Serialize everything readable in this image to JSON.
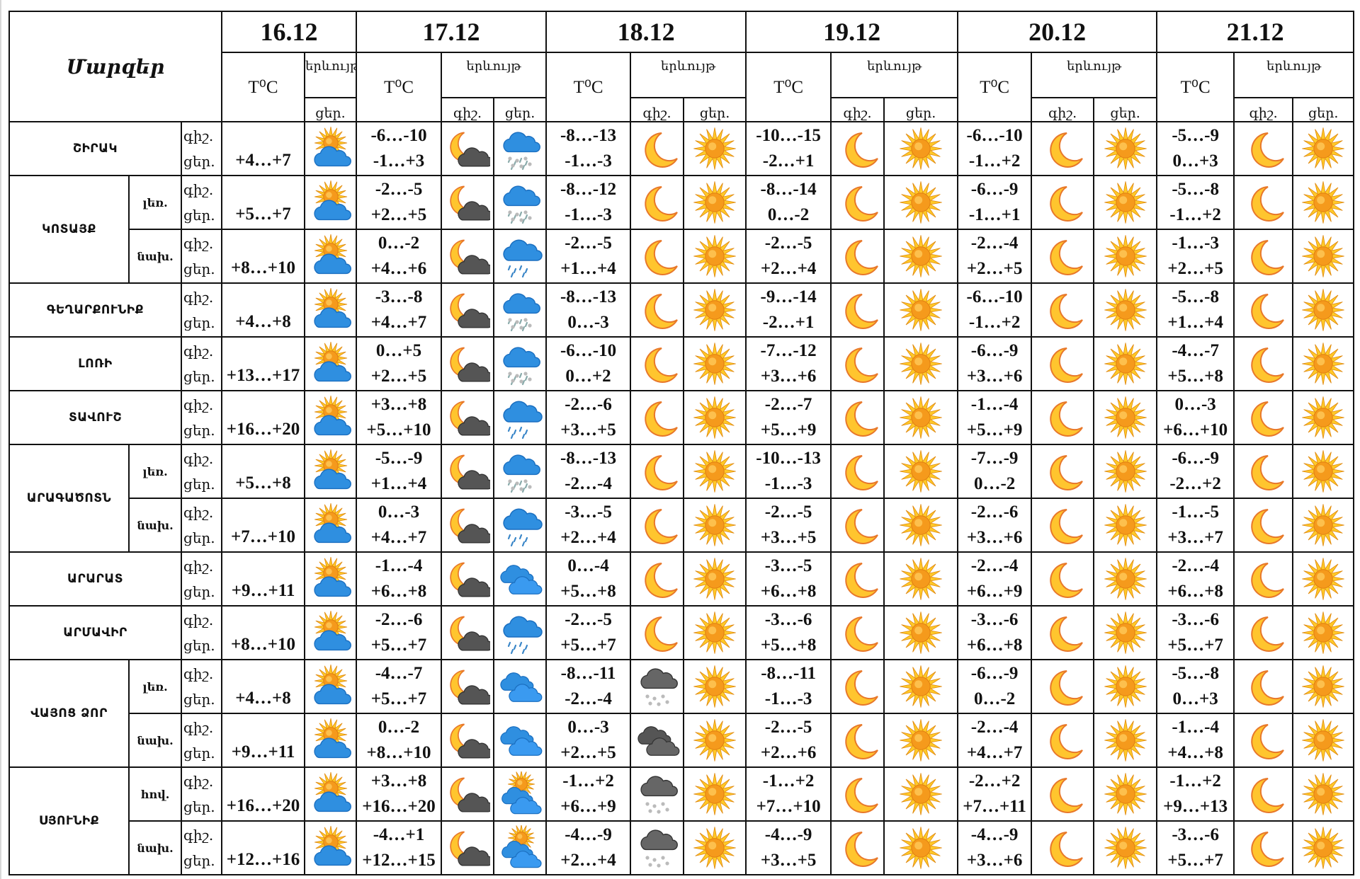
{
  "header": {
    "title": "Մարզեր",
    "dates": [
      "16.12",
      "17.12",
      "18.12",
      "19.12",
      "20.12",
      "21.12"
    ],
    "temp_label": "T⁰C",
    "phenomenon_label": "երևույթ",
    "night_label": "գիշ.",
    "day_label": "ցեր."
  },
  "rows": [
    {
      "region": "ՇԻՐԱԿ",
      "sub": "",
      "night": "գիշ.",
      "day": "ցեր.",
      "d16": {
        "temp": "+4…+7",
        "icon": "sun-cloud"
      },
      "days": [
        {
          "tn": "-6…-10",
          "td": "-1…+3",
          "in": "moon-cloud",
          "id": "sleet"
        },
        {
          "tn": "-8…-13",
          "td": "-1…-3",
          "in": "moon",
          "id": "sun"
        },
        {
          "tn": "-10…-15",
          "td": "-2…+1",
          "in": "moon",
          "id": "sun"
        },
        {
          "tn": "-6…-10",
          "td": "-1…+2",
          "in": "moon",
          "id": "sun"
        },
        {
          "tn": "-5…-9",
          "td": "0…+3",
          "in": "moon",
          "id": "sun"
        }
      ]
    },
    {
      "region": "ԿՈՏԱՅՔ",
      "sub": "լեռ.",
      "night": "գիշ.",
      "day": "ցեր.",
      "d16": {
        "temp": "+5…+7",
        "icon": "sun-cloud"
      },
      "days": [
        {
          "tn": "-2…-5",
          "td": "+2…+5",
          "in": "moon-cloud",
          "id": "sleet"
        },
        {
          "tn": "-8…-12",
          "td": "-1…-3",
          "in": "moon",
          "id": "sun"
        },
        {
          "tn": "-8…-14",
          "td": "0…-2",
          "in": "moon",
          "id": "sun"
        },
        {
          "tn": "-6…-9",
          "td": "-1…+1",
          "in": "moon",
          "id": "sun"
        },
        {
          "tn": "-5…-8",
          "td": "-1…+2",
          "in": "moon",
          "id": "sun"
        }
      ]
    },
    {
      "region": "",
      "sub": "նախ.",
      "night": "գիշ.",
      "day": "ցեր.",
      "d16": {
        "temp": "+8…+10",
        "icon": "sun-cloud"
      },
      "days": [
        {
          "tn": "0…-2",
          "td": "+4…+6",
          "in": "moon-cloud",
          "id": "rain"
        },
        {
          "tn": "-2…-5",
          "td": "+1…+4",
          "in": "moon",
          "id": "sun"
        },
        {
          "tn": "-2…-5",
          "td": "+2…+4",
          "in": "moon",
          "id": "sun"
        },
        {
          "tn": "-2…-4",
          "td": "+2…+5",
          "in": "moon",
          "id": "sun"
        },
        {
          "tn": "-1…-3",
          "td": "+2…+5",
          "in": "moon",
          "id": "sun"
        }
      ]
    },
    {
      "region": "ԳԵՂԱՐՔՈՒՆԻՔ",
      "sub": "",
      "night": "գիշ.",
      "day": "ցեր.",
      "d16": {
        "temp": "+4…+8",
        "icon": "sun-cloud"
      },
      "days": [
        {
          "tn": "-3…-8",
          "td": "+4…+7",
          "in": "moon-cloud",
          "id": "sleet"
        },
        {
          "tn": "-8…-13",
          "td": "0…-3",
          "in": "moon",
          "id": "sun"
        },
        {
          "tn": "-9…-14",
          "td": "-2…+1",
          "in": "moon",
          "id": "sun"
        },
        {
          "tn": "-6…-10",
          "td": "-1…+2",
          "in": "moon",
          "id": "sun"
        },
        {
          "tn": "-5…-8",
          "td": "+1…+4",
          "in": "moon",
          "id": "sun"
        }
      ]
    },
    {
      "region": "ԼՈՌԻ",
      "sub": "",
      "night": "գիշ.",
      "day": "ցեր.",
      "d16": {
        "temp": "+13…+17",
        "icon": "sun-cloud"
      },
      "days": [
        {
          "tn": "0…+5",
          "td": "+2…+5",
          "in": "moon-cloud",
          "id": "sleet"
        },
        {
          "tn": "-6…-10",
          "td": "0…+2",
          "in": "moon",
          "id": "sun"
        },
        {
          "tn": "-7…-12",
          "td": "+3…+6",
          "in": "moon",
          "id": "sun"
        },
        {
          "tn": "-6…-9",
          "td": "+3…+6",
          "in": "moon",
          "id": "sun"
        },
        {
          "tn": "-4…-7",
          "td": "+5…+8",
          "in": "moon",
          "id": "sun"
        }
      ]
    },
    {
      "region": "ՏԱՎՈՒՇ",
      "sub": "",
      "night": "գիշ.",
      "day": "ցեր.",
      "d16": {
        "temp": "+16…+20",
        "icon": "sun-cloud"
      },
      "days": [
        {
          "tn": "+3…+8",
          "td": "+5…+10",
          "in": "moon-cloud",
          "id": "rain"
        },
        {
          "tn": "-2…-6",
          "td": "+3…+5",
          "in": "moon",
          "id": "sun"
        },
        {
          "tn": "-2…-7",
          "td": "+5…+9",
          "in": "moon",
          "id": "sun"
        },
        {
          "tn": "-1…-4",
          "td": "+5…+9",
          "in": "moon",
          "id": "sun"
        },
        {
          "tn": "0…-3",
          "td": "+6…+10",
          "in": "moon",
          "id": "sun"
        }
      ]
    },
    {
      "region": "ԱՐԱԳԱԾՈՏՆ",
      "sub": "լեռ.",
      "night": "գիշ.",
      "day": "ցեր.",
      "d16": {
        "temp": "+5…+8",
        "icon": "sun-cloud"
      },
      "days": [
        {
          "tn": "-5…-9",
          "td": "+1…+4",
          "in": "moon-cloud",
          "id": "sleet"
        },
        {
          "tn": "-8…-13",
          "td": "-2…-4",
          "in": "moon",
          "id": "sun"
        },
        {
          "tn": "-10…-13",
          "td": "-1…-3",
          "in": "moon",
          "id": "sun"
        },
        {
          "tn": "-7…-9",
          "td": "0…-2",
          "in": "moon",
          "id": "sun"
        },
        {
          "tn": "-6…-9",
          "td": "-2…+2",
          "in": "moon",
          "id": "sun"
        }
      ]
    },
    {
      "region": "",
      "sub": "նախ.",
      "night": "գիշ.",
      "day": "ցեր.",
      "d16": {
        "temp": "+7…+10",
        "icon": "sun-cloud"
      },
      "days": [
        {
          "tn": "0…-3",
          "td": "+4…+7",
          "in": "moon-cloud",
          "id": "rain"
        },
        {
          "tn": "-3…-5",
          "td": "+2…+4",
          "in": "moon",
          "id": "sun"
        },
        {
          "tn": "-2…-5",
          "td": "+3…+5",
          "in": "moon",
          "id": "sun"
        },
        {
          "tn": "-2…-6",
          "td": "+3…+6",
          "in": "moon",
          "id": "sun"
        },
        {
          "tn": "-1…-5",
          "td": "+3…+7",
          "in": "moon",
          "id": "sun"
        }
      ]
    },
    {
      "region": "ԱՐԱՐԱՏ",
      "sub": "",
      "night": "գիշ.",
      "day": "ցեր.",
      "d16": {
        "temp": "+9…+11",
        "icon": "sun-cloud"
      },
      "days": [
        {
          "tn": "-1…-4",
          "td": "+6…+8",
          "in": "moon-cloud",
          "id": "clouds"
        },
        {
          "tn": "0…-4",
          "td": "+5…+8",
          "in": "moon",
          "id": "sun"
        },
        {
          "tn": "-3…-5",
          "td": "+6…+8",
          "in": "moon",
          "id": "sun"
        },
        {
          "tn": "-2…-4",
          "td": "+6…+9",
          "in": "moon",
          "id": "sun"
        },
        {
          "tn": "-2…-4",
          "td": "+6…+8",
          "in": "moon",
          "id": "sun"
        }
      ]
    },
    {
      "region": "ԱՐՄԱՎԻՐ",
      "sub": "",
      "night": "գիշ.",
      "day": "ցեր.",
      "d16": {
        "temp": "+8…+10",
        "icon": "sun-cloud"
      },
      "days": [
        {
          "tn": "-2…-6",
          "td": "+5…+7",
          "in": "moon-cloud",
          "id": "rain"
        },
        {
          "tn": "-2…-5",
          "td": "+5…+7",
          "in": "moon",
          "id": "sun"
        },
        {
          "tn": "-3…-6",
          "td": "+5…+8",
          "in": "moon",
          "id": "sun"
        },
        {
          "tn": "-3…-6",
          "td": "+6…+8",
          "in": "moon",
          "id": "sun"
        },
        {
          "tn": "-3…-6",
          "td": "+5…+7",
          "in": "moon",
          "id": "sun"
        }
      ]
    },
    {
      "region": "ՎԱՅՈՑ ՁՈՐ",
      "sub": "լեռ.",
      "night": "գիշ.",
      "day": "ցեր.",
      "d16": {
        "temp": "+4…+8",
        "icon": "sun-cloud"
      },
      "days": [
        {
          "tn": "-4…-7",
          "td": "+5…+7",
          "in": "moon-cloud",
          "id": "clouds"
        },
        {
          "tn": "-8…-11",
          "td": "-2…-4",
          "in": "snow-cloud",
          "id": "sun"
        },
        {
          "tn": "-8…-11",
          "td": "-1…-3",
          "in": "moon",
          "id": "sun"
        },
        {
          "tn": "-6…-9",
          "td": "0…-2",
          "in": "moon",
          "id": "sun"
        },
        {
          "tn": "-5…-8",
          "td": "0…+3",
          "in": "moon",
          "id": "sun"
        }
      ]
    },
    {
      "region": "",
      "sub": "նախ.",
      "night": "գիշ.",
      "day": "ցեր.",
      "d16": {
        "temp": "+9…+11",
        "icon": "sun-cloud"
      },
      "days": [
        {
          "tn": "0…-2",
          "td": "+8…+10",
          "in": "moon-cloud",
          "id": "clouds"
        },
        {
          "tn": "0…-3",
          "td": "+2…+5",
          "in": "dark-clouds",
          "id": "sun"
        },
        {
          "tn": "-2…-5",
          "td": "+2…+6",
          "in": "moon",
          "id": "sun"
        },
        {
          "tn": "-2…-4",
          "td": "+4…+7",
          "in": "moon",
          "id": "sun"
        },
        {
          "tn": "-1…-4",
          "td": "+4…+8",
          "in": "moon",
          "id": "sun"
        }
      ]
    },
    {
      "region": "ՍՅՈՒՆԻՔ",
      "sub": "հով.",
      "night": "գիշ.",
      "day": "ցեր.",
      "d16": {
        "temp": "+16…+20",
        "icon": "sun-cloud"
      },
      "days": [
        {
          "tn": "+3…+8",
          "td": "+16…+20",
          "in": "moon-cloud",
          "id": "sun-clouds"
        },
        {
          "tn": "-1…+2",
          "td": "+6…+9",
          "in": "snow-cloud",
          "id": "sun"
        },
        {
          "tn": "-1…+2",
          "td": "+7…+10",
          "in": "moon",
          "id": "sun"
        },
        {
          "tn": "-2…+2",
          "td": "+7…+11",
          "in": "moon",
          "id": "sun"
        },
        {
          "tn": "-1…+2",
          "td": "+9…+13",
          "in": "moon",
          "id": "sun"
        }
      ]
    },
    {
      "region": "",
      "sub": "նախ.",
      "night": "գիշ.",
      "day": "ցեր.",
      "d16": {
        "temp": "+12…+16",
        "icon": "sun-cloud"
      },
      "days": [
        {
          "tn": "-4…+1",
          "td": "+12…+15",
          "in": "moon-cloud",
          "id": "sun-clouds"
        },
        {
          "tn": "-4…-9",
          "td": "+2…+4",
          "in": "snow-cloud",
          "id": "sun"
        },
        {
          "tn": "-4…-9",
          "td": "+3…+5",
          "in": "moon",
          "id": "sun"
        },
        {
          "tn": "-4…-9",
          "td": "+3…+6",
          "in": "moon",
          "id": "sun"
        },
        {
          "tn": "-3…-6",
          "td": "+5…+7",
          "in": "moon",
          "id": "sun"
        }
      ]
    }
  ],
  "colors": {
    "border": "#111111",
    "sun": "#f7a21b",
    "moon": "#f5b82e",
    "cloud_blue": "#2f8fe0",
    "cloud_dark": "#555555"
  }
}
